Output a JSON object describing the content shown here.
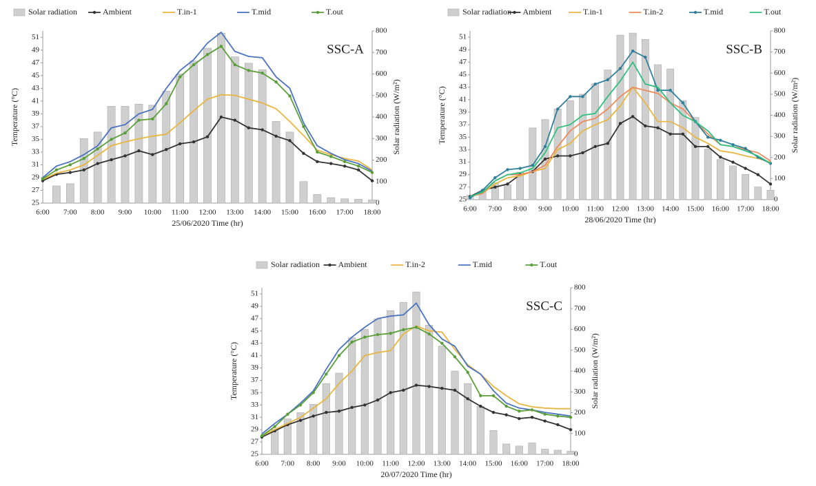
{
  "chart_data": [
    {
      "type": "combo",
      "annotation": "SSC-A",
      "x_label": "25/06/2020 Time (hr)",
      "y_label": "Temperature (°C)",
      "y2_label": "Solar radiation (W/m²)",
      "categories": [
        "6:00",
        null,
        "7:00",
        null,
        "8:00",
        null,
        "9:00",
        null,
        "10:00",
        null,
        "11:00",
        null,
        "12:00",
        null,
        "13:00",
        null,
        "14:00",
        null,
        "15:00",
        null,
        "16:00",
        null,
        "17:00",
        null,
        "18:00"
      ],
      "ylim": [
        25,
        52
      ],
      "yticks": [
        25,
        27,
        29,
        31,
        33,
        35,
        37,
        39,
        41,
        43,
        45,
        47,
        49,
        51
      ],
      "y2lim": [
        0,
        800
      ],
      "y2ticks": [
        0,
        100,
        200,
        300,
        400,
        500,
        600,
        700,
        800
      ],
      "series": [
        {
          "name": "Solar radiation",
          "type": "bar",
          "axis": "y2",
          "color": "#cfcfcf",
          "values": [
            null,
            80,
            90,
            300,
            330,
            450,
            450,
            460,
            455,
            520,
            600,
            660,
            720,
            790,
            680,
            650,
            620,
            380,
            330,
            100,
            40,
            25,
            20,
            18,
            15
          ]
        },
        {
          "name": "Ambient",
          "type": "line",
          "color": "#333333",
          "markers": true,
          "values": [
            28.5,
            29.5,
            29.8,
            30.2,
            31.2,
            31.8,
            32.4,
            33.2,
            32.6,
            33.4,
            34.3,
            34.6,
            35.4,
            38.5,
            38,
            36.8,
            36.5,
            35.5,
            34.8,
            32.8,
            31.5,
            31.2,
            30.8,
            30.2,
            28.5
          ]
        },
        {
          "name": "T.in-1",
          "type": "line",
          "color": "#e8b540",
          "markers": false,
          "values": [
            28.7,
            29.7,
            30.2,
            31,
            32.5,
            34,
            34.6,
            35.1,
            35.5,
            35.8,
            37.6,
            39.5,
            41.3,
            42,
            41.9,
            41.3,
            40.7,
            39.8,
            37.8,
            35.6,
            33.3,
            32.6,
            32,
            31.6,
            30.2
          ]
        },
        {
          "name": "T.mid",
          "type": "line",
          "color": "#4a72c0",
          "markers": false,
          "values": [
            29,
            30.8,
            31.5,
            32.6,
            34,
            36.8,
            37.3,
            39,
            39.7,
            43,
            45.8,
            47.5,
            50.1,
            51.8,
            48.8,
            48,
            47.8,
            44.8,
            43,
            37.6,
            34,
            32.8,
            31.8,
            31.2,
            30
          ]
        },
        {
          "name": "T.out",
          "type": "line",
          "color": "#5a9e3a",
          "markers": true,
          "values": [
            28.8,
            30.2,
            31,
            32,
            33.5,
            35,
            36,
            38,
            38.2,
            40.6,
            44.8,
            46.7,
            48.3,
            49.6,
            46.7,
            45.8,
            45.4,
            44,
            41.8,
            37,
            33,
            32.3,
            31.5,
            30.8,
            29.8
          ]
        }
      ]
    },
    {
      "type": "combo",
      "annotation": "SSC-B",
      "x_label": "28/06/2020 Time (hr)",
      "y_label": "Temperature (°C)",
      "y2_label": "Solar radiation (W/m²)",
      "categories": [
        "6:00",
        null,
        "7:00",
        null,
        "8:00",
        null,
        "9:00",
        null,
        "10:00",
        null,
        "11:00",
        null,
        "12:00",
        null,
        "13:00",
        null,
        "14:00",
        null,
        "15:00",
        null,
        "16:00",
        null,
        "17:00",
        null,
        "18:00"
      ],
      "ylim": [
        25,
        52
      ],
      "yticks": [
        25,
        27,
        29,
        31,
        33,
        35,
        37,
        39,
        41,
        43,
        45,
        47,
        49,
        51
      ],
      "y2lim": [
        0,
        800
      ],
      "y2ticks": [
        0,
        100,
        200,
        300,
        400,
        500,
        600,
        700,
        800
      ],
      "series": [
        {
          "name": "Solar radiation",
          "type": "bar",
          "axis": "y2",
          "color": "#cfcfcf",
          "values": [
            20,
            40,
            80,
            70,
            130,
            340,
            380,
            430,
            470,
            500,
            550,
            615,
            780,
            790,
            760,
            640,
            620,
            470,
            390,
            240,
            190,
            160,
            120,
            60,
            45
          ]
        },
        {
          "name": "Ambient",
          "type": "line",
          "color": "#333333",
          "markers": true,
          "values": [
            25.5,
            26.5,
            27,
            27.5,
            29,
            29.5,
            31.5,
            32,
            32,
            32.5,
            33.5,
            34,
            37.2,
            38.3,
            36.8,
            36.5,
            35.5,
            35.5,
            33.5,
            33.5,
            31.8,
            31,
            30,
            29,
            27.5
          ]
        },
        {
          "name": "T.in-1",
          "type": "line",
          "color": "#e8b540",
          "markers": false,
          "values": [
            25.5,
            26,
            27.5,
            28.5,
            28.8,
            29.5,
            30,
            33,
            34,
            36,
            37,
            37.8,
            40,
            43,
            40.5,
            37.5,
            37.5,
            36.5,
            35,
            34,
            32.8,
            32.5,
            32,
            31.6,
            31
          ]
        },
        {
          "name": "T.in-2",
          "type": "line",
          "color": "#ee8a5c",
          "markers": false,
          "values": [
            25.5,
            26,
            28,
            29,
            29,
            29.5,
            30.5,
            33.5,
            36,
            37.5,
            38,
            39.5,
            41.5,
            43,
            42.5,
            42,
            40.5,
            39.5,
            37.5,
            35.5,
            33.8,
            33.5,
            33,
            32.5,
            31.2
          ]
        },
        {
          "name": "T.mid",
          "type": "line",
          "color": "#2f7f9a",
          "markers": true,
          "values": [
            25.3,
            26.5,
            28.5,
            29.8,
            30,
            30.5,
            33.5,
            39.5,
            41.5,
            41.5,
            43.5,
            44.2,
            46,
            48.8,
            47.8,
            42.5,
            42.5,
            40.5,
            37.5,
            35,
            34.5,
            33.8,
            33.2,
            31.8,
            30.8
          ]
        },
        {
          "name": "T.out",
          "type": "line",
          "color": "#2fbf7f",
          "markers": false,
          "values": [
            25.5,
            26.2,
            28,
            29,
            29.3,
            30,
            32.5,
            36.5,
            37,
            38.5,
            38.8,
            41.5,
            44,
            47,
            43.5,
            43,
            40.5,
            38.5,
            37.5,
            36,
            33.8,
            33.5,
            32.8,
            32,
            30.8
          ]
        }
      ]
    },
    {
      "type": "combo",
      "annotation": "SSC-C",
      "x_label": "20/07/2020 Time (hr)",
      "y_label": "Temperature (°C)",
      "y2_label": "Solar radiation (W/m²)",
      "categories": [
        "6:00",
        null,
        "7:00",
        null,
        "8:00",
        null,
        "9:00",
        null,
        "10:00",
        null,
        "11:00",
        null,
        "12:00",
        null,
        "13:00",
        null,
        "14:00",
        null,
        "15:00",
        null,
        "16:00",
        null,
        "17:00",
        null,
        "18:00"
      ],
      "ylim": [
        25,
        52
      ],
      "yticks": [
        25,
        27,
        29,
        31,
        33,
        35,
        37,
        39,
        41,
        43,
        45,
        47,
        49,
        51
      ],
      "y2lim": [
        0,
        800
      ],
      "y2ticks": [
        0,
        100,
        200,
        300,
        400,
        500,
        600,
        700,
        800
      ],
      "series": [
        {
          "name": "Solar radiation",
          "type": "bar",
          "axis": "y2",
          "color": "#cfcfcf",
          "values": [
            null,
            120,
            170,
            200,
            240,
            340,
            390,
            560,
            600,
            650,
            690,
            730,
            780,
            620,
            520,
            400,
            340,
            230,
            115,
            50,
            40,
            55,
            25,
            20,
            15
          ]
        },
        {
          "name": "Ambient",
          "type": "line",
          "color": "#333333",
          "markers": true,
          "values": [
            27.8,
            28.8,
            29.8,
            30.5,
            31.2,
            31.8,
            32,
            32.6,
            33,
            33.8,
            35,
            35.4,
            36.2,
            36,
            35.7,
            35.4,
            34,
            32.8,
            31.8,
            31.4,
            30.8,
            31,
            30.4,
            29.8,
            29
          ]
        },
        {
          "name": "T.in-2",
          "type": "line",
          "color": "#e8b540",
          "markers": false,
          "values": [
            28,
            29,
            30,
            31,
            32.5,
            34,
            36.5,
            38.5,
            41,
            41.5,
            41.8,
            44.5,
            45.8,
            45,
            44.8,
            42,
            39.5,
            38,
            36,
            34.5,
            33.2,
            32.7,
            32.5,
            32.4,
            32.4
          ]
        },
        {
          "name": "T.mid",
          "type": "line",
          "color": "#4a72c0",
          "markers": false,
          "values": [
            28.3,
            30,
            31.5,
            33.3,
            35.3,
            38.8,
            42,
            44,
            45.6,
            47,
            47.4,
            47.6,
            49.5,
            46,
            43.7,
            42.5,
            39.3,
            38,
            35.3,
            33.3,
            32.5,
            32.2,
            31.8,
            31.5,
            31.2
          ]
        },
        {
          "name": "T.out",
          "type": "line",
          "color": "#5a9e3a",
          "markers": true,
          "values": [
            28,
            29.5,
            31.5,
            33,
            35,
            38,
            41,
            43.2,
            44,
            44.4,
            44.6,
            45.2,
            45.6,
            44.5,
            43,
            40.8,
            38.3,
            34.5,
            34.5,
            32.8,
            32,
            32.2,
            31.5,
            31.2,
            31
          ]
        }
      ]
    }
  ]
}
